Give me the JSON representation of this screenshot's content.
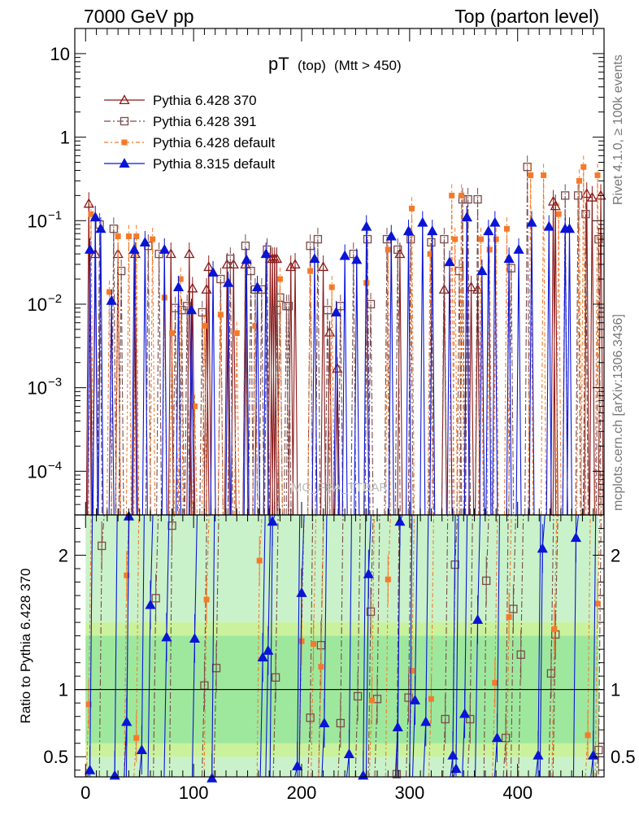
{
  "header": {
    "left": "7000 GeV pp",
    "right": "Top (parton level)"
  },
  "side_labels": {
    "rivet": "Rivet 4.1.0, ≥ 100k events",
    "mcplots": "mcplots.cern.ch [arXiv:1306.3436]"
  },
  "watermark": "MC_FBA_TTBAR",
  "plot_title": {
    "main": "pT",
    "sub1": "(top)",
    "sub2": "(Mtt > 450)"
  },
  "ratio_ylabel": "Ratio to Pythia 6.428 370",
  "chart_data": {
    "type": "line",
    "xlim": [
      -10,
      480
    ],
    "main": {
      "yscale": "log",
      "ylim": [
        3e-05,
        20
      ],
      "yticks": [
        {
          "value": 10,
          "label": "10"
        },
        {
          "value": 1,
          "label": "1"
        },
        {
          "value": 0.1,
          "label": "10",
          "sup": "−1"
        },
        {
          "value": 0.01,
          "label": "10",
          "sup": "−2"
        },
        {
          "value": 0.001,
          "label": "10",
          "sup": "−3"
        },
        {
          "value": 0.0001,
          "label": "10",
          "sup": "−4"
        }
      ]
    },
    "ratio": {
      "ylim": [
        0.35,
        2.3
      ],
      "yticks": [
        {
          "value": 0.5,
          "label": "0.5"
        },
        {
          "value": 1,
          "label": "1"
        },
        {
          "value": 2,
          "label": "2"
        }
      ],
      "reference": 1,
      "band_outer_default": 0.5,
      "band_inner_default": 0.4
    },
    "xticks": [
      {
        "value": 0,
        "label": "0"
      },
      {
        "value": 100,
        "label": "100"
      },
      {
        "value": 200,
        "label": "200"
      },
      {
        "value": 300,
        "label": "300"
      },
      {
        "value": 400,
        "label": "400"
      }
    ],
    "series": [
      {
        "name": "Pythia 6.428 370",
        "color": "#8b1a1a",
        "marker": "triangle-open",
        "dash": "",
        "points": [
          [
            3,
            0.16
          ],
          [
            9,
            0.04
          ],
          [
            30,
            0.04
          ],
          [
            46,
            0.04
          ],
          [
            79,
            0.04
          ],
          [
            96,
            0.04
          ],
          [
            99,
            0.0155
          ],
          [
            112,
            0.015
          ],
          [
            114,
            0.028
          ],
          [
            131,
            0.03
          ],
          [
            137,
            0.03
          ],
          [
            148,
            0.03
          ],
          [
            171,
            0.035
          ],
          [
            173,
            0.035
          ],
          [
            175,
            0.035
          ],
          [
            177,
            0.035
          ],
          [
            190,
            0.028
          ],
          [
            194,
            0.03
          ],
          [
            220,
            0.028
          ],
          [
            226,
            0.0046
          ],
          [
            233,
            0.0017
          ],
          [
            291,
            0.04
          ],
          [
            332,
            0.015
          ],
          [
            353,
            0.11
          ],
          [
            357,
            0.016
          ],
          [
            363,
            0.015
          ],
          [
            433,
            0.17
          ],
          [
            435,
            0.15
          ],
          [
            464,
            0.21
          ],
          [
            469,
            0.19
          ],
          [
            477,
            0.2
          ]
        ]
      },
      {
        "name": "Pythia 6.428 391",
        "color": "#7b4a4a",
        "marker": "square-open",
        "dash": "8,3,2,3",
        "points": [
          [
            13,
            0.09
          ],
          [
            26,
            0.08
          ],
          [
            33,
            0.025
          ],
          [
            58,
            0.05
          ],
          [
            68,
            0.04
          ],
          [
            83,
            0.009
          ],
          [
            89,
            0.0085
          ],
          [
            94,
            0.0095
          ],
          [
            108,
            0.008
          ],
          [
            125,
            0.02
          ],
          [
            134,
            0.035
          ],
          [
            148,
            0.05
          ],
          [
            153,
            0.025
          ],
          [
            157,
            0.015
          ],
          [
            163,
            0.015
          ],
          [
            168,
            0.045
          ],
          [
            177,
            0.0085
          ],
          [
            180,
            0.012
          ],
          [
            186,
            0.0095
          ],
          [
            188,
            0.0095
          ],
          [
            208,
            0.05
          ],
          [
            215,
            0.06
          ],
          [
            224,
            0.0085
          ],
          [
            236,
            0.0095
          ],
          [
            248,
            0.04
          ],
          [
            261,
            0.06
          ],
          [
            264,
            0.01
          ],
          [
            279,
            0.06
          ],
          [
            289,
            0.045
          ],
          [
            301,
            0.06
          ],
          [
            320,
            0.055
          ],
          [
            332,
            0.06
          ],
          [
            346,
            0.025
          ],
          [
            349,
            0.18
          ],
          [
            354,
            0.18
          ],
          [
            363,
            0.18
          ],
          [
            394,
            0.027
          ],
          [
            409,
            0.44
          ],
          [
            444,
            0.2
          ],
          [
            456,
            0.2
          ],
          [
            463,
            0.12
          ],
          [
            475,
            0.06
          ]
        ]
      },
      {
        "name": "Pythia 6.428 default",
        "color": "#f47a2a",
        "marker": "square",
        "dash": "5,3,2,3",
        "points": [
          [
            5,
            0.12
          ],
          [
            22,
            0.014
          ],
          [
            30,
            0.065
          ],
          [
            40,
            0.065
          ],
          [
            47,
            0.065
          ],
          [
            62,
            0.06
          ],
          [
            73,
            0.012
          ],
          [
            80,
            0.0045
          ],
          [
            88,
            0.02
          ],
          [
            101,
            0.0006
          ],
          [
            110,
            0.0055
          ],
          [
            125,
            0.0075
          ],
          [
            140,
            0.0045
          ],
          [
            157,
            0.0055
          ],
          [
            180,
            0.02
          ],
          [
            208,
            0.025
          ],
          [
            228,
            0.016
          ],
          [
            260,
            0.018
          ],
          [
            280,
            0.045
          ],
          [
            302,
            0.14
          ],
          [
            319,
            0.04
          ],
          [
            339,
            0.2
          ],
          [
            342,
            0.06
          ],
          [
            348,
            0.2
          ],
          [
            366,
            0.06
          ],
          [
            374,
            0.045
          ],
          [
            380,
            0.06
          ],
          [
            390,
            0.08
          ],
          [
            412,
            0.35
          ],
          [
            424,
            0.35
          ],
          [
            438,
            0.12
          ],
          [
            457,
            0.3
          ],
          [
            461,
            0.44
          ],
          [
            474,
            0.35
          ]
        ]
      },
      {
        "name": "Pythia 8.315 default",
        "color": "#0a15d6",
        "marker": "triangle",
        "dash": "",
        "points": [
          [
            4,
            0.045
          ],
          [
            9,
            0.11
          ],
          [
            14,
            0.08
          ],
          [
            24,
            0.011
          ],
          [
            45,
            0.045
          ],
          [
            55,
            0.055
          ],
          [
            73,
            0.045
          ],
          [
            86,
            0.016
          ],
          [
            98,
            0.0085
          ],
          [
            118,
            0.024
          ],
          [
            132,
            0.018
          ],
          [
            149,
            0.034
          ],
          [
            159,
            0.016
          ],
          [
            167,
            0.04
          ],
          [
            212,
            0.035
          ],
          [
            232,
            0.008
          ],
          [
            240,
            0.038
          ],
          [
            251,
            0.034
          ],
          [
            260,
            0.085
          ],
          [
            283,
            0.065
          ],
          [
            299,
            0.075
          ],
          [
            312,
            0.095
          ],
          [
            321,
            0.075
          ],
          [
            337,
            0.032
          ],
          [
            353,
            0.11
          ],
          [
            367,
            0.025
          ],
          [
            373,
            0.075
          ],
          [
            379,
            0.095
          ],
          [
            392,
            0.035
          ],
          [
            401,
            0.045
          ],
          [
            413,
            0.095
          ],
          [
            429,
            0.085
          ],
          [
            444,
            0.08
          ],
          [
            448,
            0.08
          ]
        ]
      }
    ],
    "ratio_series": [
      {
        "name": "Pythia 6.428 391",
        "points": [
          [
            15,
            2.07
          ],
          [
            65,
            1.68
          ],
          [
            80,
            2.22
          ],
          [
            110,
            1.03
          ],
          [
            121,
            1.16
          ],
          [
            176,
            1.09
          ],
          [
            208,
            0.79
          ],
          [
            218,
            1.33
          ],
          [
            236,
            0.75
          ],
          [
            252,
            0.95
          ],
          [
            264,
            1.58
          ],
          [
            270,
            0.93
          ],
          [
            288,
            0.37
          ],
          [
            299,
            0.94
          ],
          [
            333,
            0.78
          ],
          [
            342,
            1.93
          ],
          [
            356,
            0.78
          ],
          [
            371,
            1.81
          ],
          [
            389,
            0.64
          ],
          [
            396,
            1.6
          ],
          [
            403,
            1.26
          ],
          [
            431,
            1.12
          ],
          [
            435,
            1.41
          ],
          [
            475,
            0.55
          ]
        ]
      },
      {
        "name": "Pythia 6.428 default",
        "points": [
          [
            3,
            0.89
          ],
          [
            38,
            1.85
          ],
          [
            47,
            0.64
          ],
          [
            112,
            1.67
          ],
          [
            161,
            1.96
          ],
          [
            200,
            1.36
          ],
          [
            211,
            1.34
          ],
          [
            218,
            1.17
          ],
          [
            265,
            0.92
          ],
          [
            280,
            1.82
          ],
          [
            302,
            1.14
          ],
          [
            320,
            0.93
          ],
          [
            379,
            1.05
          ],
          [
            392,
            1.54
          ],
          [
            434,
            1.45
          ],
          [
            465,
            0.66
          ],
          [
            474,
            1.64
          ]
        ]
      },
      {
        "name": "Pythia 8.315 default",
        "points": [
          [
            4,
            0.4
          ],
          [
            27,
            0.36
          ],
          [
            38,
            0.76
          ],
          [
            40,
            2.29
          ],
          [
            52,
            0.55
          ],
          [
            60,
            1.63
          ],
          [
            75,
            1.39
          ],
          [
            101,
            1.38
          ],
          [
            117,
            0.34
          ],
          [
            164,
            1.24
          ],
          [
            169,
            1.29
          ],
          [
            173,
            2.25
          ],
          [
            196,
            0.43
          ],
          [
            200,
            1.72
          ],
          [
            221,
            0.75
          ],
          [
            244,
            0.52
          ],
          [
            257,
            0.36
          ],
          [
            262,
            1.86
          ],
          [
            289,
            0.72
          ],
          [
            291,
            2.25
          ],
          [
            300,
            0.33
          ],
          [
            305,
            0.92
          ],
          [
            315,
            0.76
          ],
          [
            340,
            0.51
          ],
          [
            343,
            0.41
          ],
          [
            351,
            0.82
          ],
          [
            363,
            1.52
          ],
          [
            381,
            0.64
          ],
          [
            419,
            0.51
          ],
          [
            423,
            2.05
          ],
          [
            454,
            2.13
          ],
          [
            470,
            0.51
          ]
        ]
      }
    ]
  }
}
